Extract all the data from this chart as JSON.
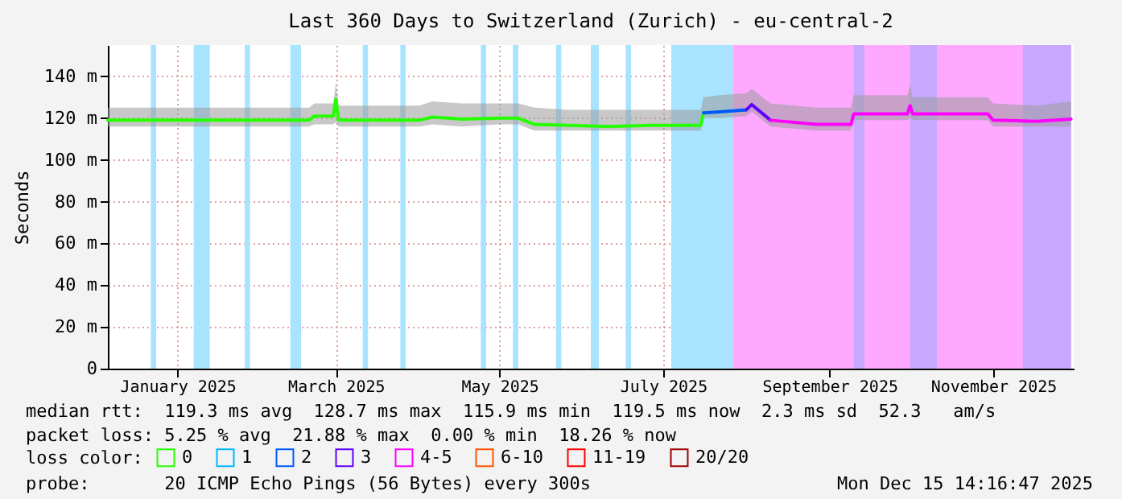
{
  "chart_data": {
    "type": "line",
    "title": "Last 360 Days to Switzerland (Zurich) - eu-central-2",
    "ylabel": "Seconds",
    "legend_title": "loss color:",
    "legend": "bottom",
    "grid": true,
    "xlim": [
      "2024-12-20",
      "2025-12-15"
    ],
    "xticks": [
      {
        "value": "2025-01-15",
        "label": "January 2025"
      },
      {
        "value": "2025-03-15",
        "label": "March 2025"
      },
      {
        "value": "2025-05-15",
        "label": "May 2025"
      },
      {
        "value": "2025-07-15",
        "label": "July 2025"
      },
      {
        "value": "2025-09-15",
        "label": "September 2025"
      },
      {
        "value": "2025-11-15",
        "label": "November 2025"
      }
    ],
    "ylim": [
      0,
      155
    ],
    "yticks": [
      0,
      {
        "value": 20,
        "label": "20 m"
      },
      {
        "value": 40,
        "label": "40 m"
      },
      {
        "value": 60,
        "label": "60 m"
      },
      {
        "value": 80,
        "label": "80 m"
      },
      {
        "value": 100,
        "label": "100 m"
      },
      {
        "value": 120,
        "label": "120 m"
      },
      {
        "value": 140,
        "label": "140 m"
      }
    ],
    "series": [
      {
        "name": "0",
        "color": "#26ff00",
        "x": [
          "2024-12-20",
          "2025-01-10",
          "2025-02-01",
          "2025-02-20",
          "2025-03-05",
          "2025-03-07",
          "2025-03-14",
          "2025-03-15",
          "2025-03-16",
          "2025-04-01",
          "2025-04-15",
          "2025-04-20",
          "2025-05-01",
          "2025-05-15",
          "2025-05-22",
          "2025-05-28",
          "2025-06-10",
          "2025-06-25",
          "2025-07-10",
          "2025-07-29",
          "2025-07-30"
        ],
        "values": [
          119,
          119,
          119,
          119,
          119,
          121,
          121,
          129,
          119,
          119,
          119,
          120.5,
          119.5,
          120,
          120,
          117,
          116.5,
          116,
          116.5,
          116.5,
          122.5
        ],
        "lower": [
          116,
          116,
          116,
          116,
          116,
          117,
          117,
          118,
          116,
          116,
          116,
          117,
          116,
          117,
          117,
          114,
          114,
          114,
          114,
          114,
          120
        ],
        "upper": [
          125,
          125,
          125,
          125,
          125,
          127,
          127,
          137,
          126,
          126,
          126,
          128,
          127,
          127,
          127,
          125,
          124,
          124,
          124,
          124,
          130
        ]
      },
      {
        "name": "1",
        "color": "#00b8ff"
      },
      {
        "name": "2",
        "color": "#0059ff",
        "x": [
          "2025-07-30",
          "2025-08-05",
          "2025-08-15"
        ],
        "values": [
          122.5,
          123,
          124
        ],
        "lower": [
          120,
          120,
          121
        ],
        "upper": [
          130,
          131,
          132
        ]
      },
      {
        "name": "3",
        "color": "#5e00ff",
        "x": [
          "2025-08-15",
          "2025-08-17",
          "2025-08-24"
        ],
        "values": [
          124,
          126.5,
          119
        ],
        "lower": [
          121,
          123,
          116
        ],
        "upper": [
          132,
          134,
          127
        ]
      },
      {
        "name": "4-5",
        "color": "#ff00ff",
        "x": [
          "2025-08-24",
          "2025-09-10",
          "2025-09-23",
          "2025-09-24",
          "2025-10-14",
          "2025-10-15",
          "2025-10-16",
          "2025-11-13",
          "2025-11-15",
          "2025-12-01",
          "2025-12-14"
        ],
        "values": [
          119,
          117,
          117,
          122,
          122,
          126,
          122,
          122,
          119,
          118.5,
          119.5
        ],
        "lower": [
          116,
          114,
          114,
          119,
          119,
          120,
          119,
          119,
          116,
          116,
          116
        ],
        "upper": [
          127,
          125,
          125,
          131,
          131,
          136,
          130,
          130,
          127,
          126,
          128
        ]
      },
      {
        "name": "6-10",
        "color": "#ff5500"
      },
      {
        "name": "11-19",
        "color": "#ff0000"
      },
      {
        "name": "20/20",
        "color": "#a10000"
      }
    ],
    "bands": [
      {
        "axis": "x",
        "from": "2025-01-05",
        "to": "2025-01-07",
        "color": "#a8e4ff"
      },
      {
        "axis": "x",
        "from": "2025-01-21",
        "to": "2025-01-27",
        "color": "#a8e4ff"
      },
      {
        "axis": "x",
        "from": "2025-02-09",
        "to": "2025-02-11",
        "color": "#a8e4ff"
      },
      {
        "axis": "x",
        "from": "2025-02-26",
        "to": "2025-03-02",
        "color": "#a8e4ff"
      },
      {
        "axis": "x",
        "from": "2025-03-25",
        "to": "2025-03-27",
        "color": "#a8e4ff"
      },
      {
        "axis": "x",
        "from": "2025-04-08",
        "to": "2025-04-10",
        "color": "#a8e4ff"
      },
      {
        "axis": "x",
        "from": "2025-05-08",
        "to": "2025-05-10",
        "color": "#a8e4ff"
      },
      {
        "axis": "x",
        "from": "2025-05-20",
        "to": "2025-05-22",
        "color": "#a8e4ff"
      },
      {
        "axis": "x",
        "from": "2025-06-05",
        "to": "2025-06-07",
        "color": "#a8e4ff"
      },
      {
        "axis": "x",
        "from": "2025-06-18",
        "to": "2025-06-21",
        "color": "#a8e4ff"
      },
      {
        "axis": "x",
        "from": "2025-07-01",
        "to": "2025-07-03",
        "color": "#a8e4ff"
      },
      {
        "axis": "x",
        "from": "2025-07-18",
        "to": "2025-08-10",
        "color": "#a8e4ff"
      },
      {
        "axis": "x",
        "from": "2025-08-10",
        "to": "2025-12-14",
        "color": "#ffa8ff"
      },
      {
        "axis": "x",
        "from": "2025-09-24",
        "to": "2025-09-28",
        "color": "#c8a8ff"
      },
      {
        "axis": "x",
        "from": "2025-10-15",
        "to": "2025-10-25",
        "color": "#c8a8ff"
      },
      {
        "axis": "x",
        "from": "2025-11-26",
        "to": "2025-12-14",
        "color": "#c8a8ff"
      }
    ],
    "annotations": [
      "median rtt:  119.3 ms avg  128.7 ms max  115.9 ms min  119.5 ms now  2.3 ms sd  52.3   am/s",
      "packet loss: 5.25 % avg  21.88 % max  0.00 % min  18.26 % now",
      "probe:       20 ICMP Echo Pings (56 Bytes) every 300s",
      "Mon Dec 15 14:16:47 2025"
    ]
  }
}
